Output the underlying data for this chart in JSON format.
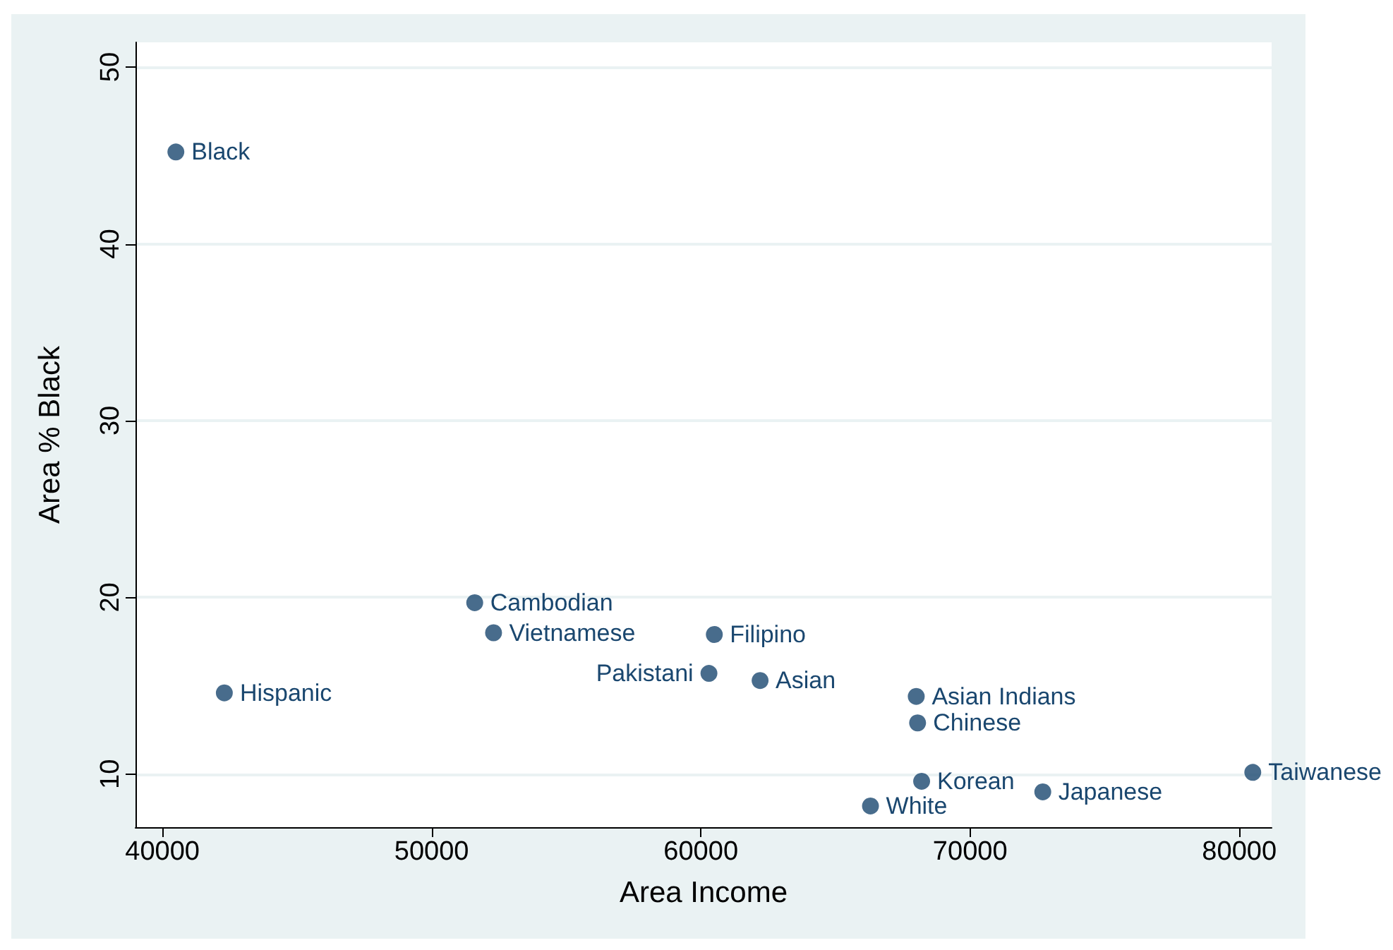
{
  "chart_data": {
    "type": "scatter",
    "xlabel": "Area Income",
    "ylabel": "Area % Black",
    "x": [
      40500,
      42300,
      51600,
      52300,
      60500,
      60300,
      62200,
      68000,
      68050,
      68200,
      66300,
      72700,
      80500
    ],
    "series": [
      {
        "color": "#1a476f",
        "values": [
          45.2,
          14.6,
          19.7,
          18.0,
          17.9,
          15.7,
          15.3,
          14.4,
          12.9,
          9.6,
          8.2,
          9.0,
          10.1
        ]
      }
    ],
    "annotations": [
      {
        "text": "Black",
        "x": 40500,
        "y": 45.2
      },
      {
        "text": "Hispanic",
        "x": 42300,
        "y": 14.6
      },
      {
        "text": "Cambodian",
        "x": 51600,
        "y": 19.7
      },
      {
        "text": "Vietnamese",
        "x": 52300,
        "y": 18.0
      },
      {
        "text": "Filipino",
        "x": 60500,
        "y": 17.9
      },
      {
        "text": "Pakistani",
        "x": 60300,
        "y": 15.7
      },
      {
        "text": "Asian",
        "x": 62200,
        "y": 15.3
      },
      {
        "text": "Asian Indians",
        "x": 68000,
        "y": 14.4
      },
      {
        "text": "Chinese",
        "x": 68050,
        "y": 12.9
      },
      {
        "text": "Korean",
        "x": 68200,
        "y": 9.6
      },
      {
        "text": "White",
        "x": 66300,
        "y": 8.2
      },
      {
        "text": "Japanese",
        "x": 72700,
        "y": 9.0
      },
      {
        "text": "Taiwanese",
        "x": 80500,
        "y": 10.1
      }
    ],
    "xlim": [
      39000,
      81200
    ],
    "xticks": [
      40000,
      50000,
      60000,
      70000,
      80000
    ],
    "ylim": [
      7,
      51.4
    ],
    "yticks": [
      10,
      20,
      30,
      40,
      50
    ],
    "grid": "y",
    "marker": "circle"
  }
}
